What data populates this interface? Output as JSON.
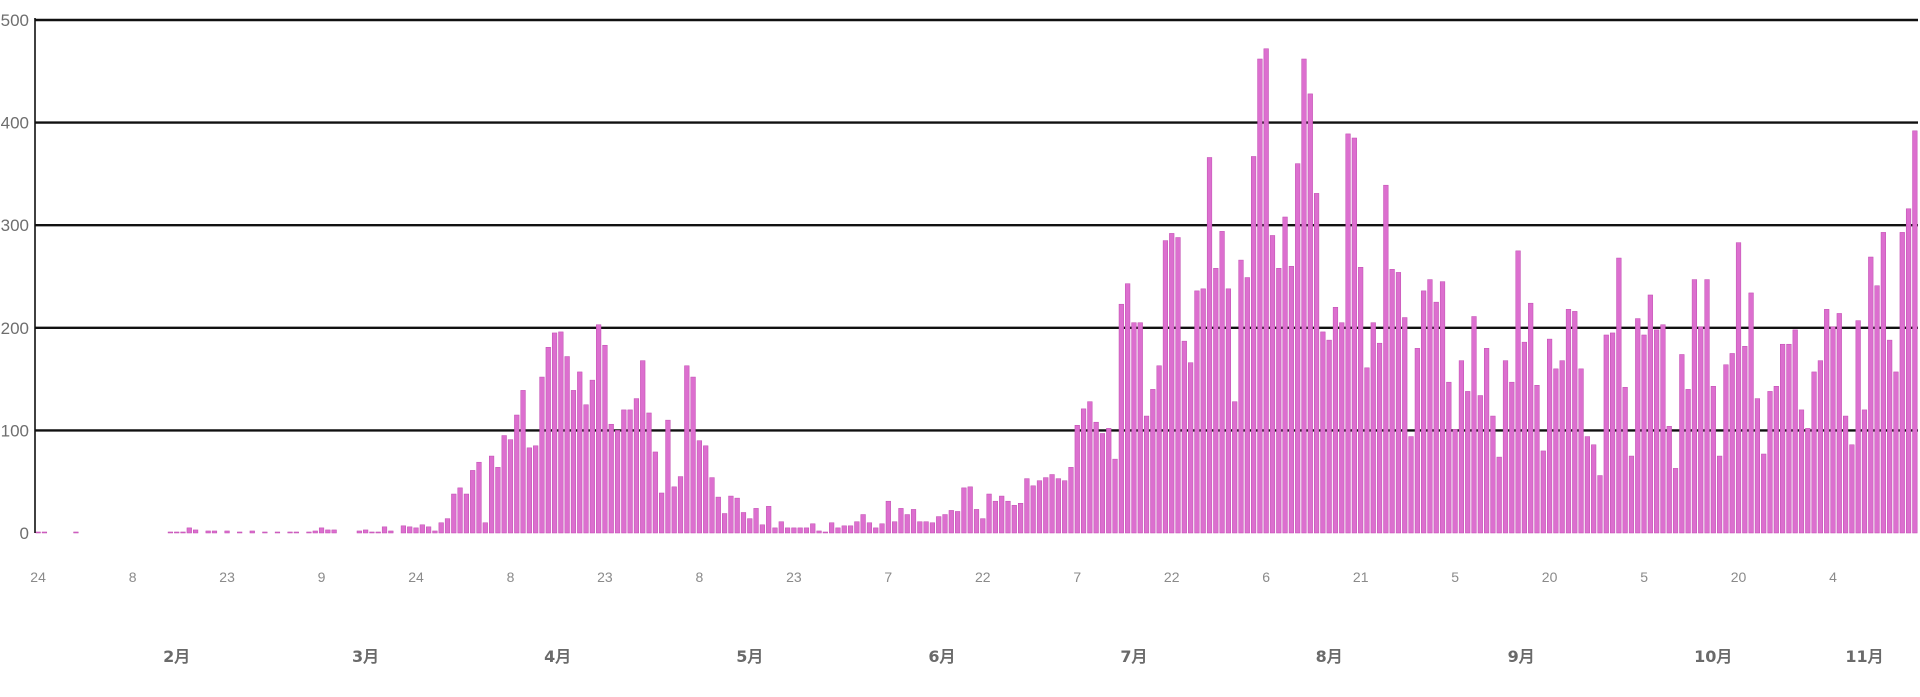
{
  "chart_data": {
    "type": "bar",
    "title": "",
    "xlabel": "",
    "ylabel": "",
    "ylim": [
      0,
      500
    ],
    "yticks": [
      "0",
      "100",
      "200",
      "300",
      "400",
      "500"
    ],
    "grid": true,
    "start_date": "01-24",
    "day_ticks": [
      "24",
      "8",
      "23",
      "9",
      "24",
      "8",
      "23",
      "8",
      "23",
      "7",
      "22",
      "7",
      "22",
      "6",
      "21",
      "5",
      "20",
      "5",
      "20",
      "4"
    ],
    "months": [
      "2月",
      "3月",
      "4月",
      "5月",
      "6月",
      "7月",
      "8月",
      "9月",
      "10月",
      "11月"
    ],
    "bar_color": "#dc6fcf",
    "values": [
      1,
      1,
      0,
      0,
      0,
      0,
      1,
      0,
      0,
      0,
      0,
      0,
      0,
      0,
      0,
      0,
      0,
      0,
      0,
      0,
      0,
      1,
      1,
      1,
      5,
      3,
      0,
      2,
      2,
      0,
      2,
      0,
      1,
      0,
      2,
      0,
      1,
      0,
      1,
      0,
      1,
      1,
      0,
      1,
      2,
      5,
      3,
      3,
      0,
      0,
      0,
      2,
      3,
      1,
      1,
      6,
      2,
      0,
      7,
      6,
      5,
      8,
      6,
      2,
      10,
      14,
      38,
      44,
      38,
      61,
      69,
      10,
      75,
      64,
      95,
      91,
      115,
      139,
      83,
      85,
      152,
      181,
      195,
      196,
      172,
      139,
      157,
      125,
      149,
      203,
      183,
      106,
      100,
      120,
      120,
      131,
      168,
      117,
      79,
      39,
      110,
      45,
      55,
      163,
      152,
      90,
      85,
      54,
      35,
      19,
      36,
      34,
      20,
      14,
      24,
      8,
      26,
      5,
      11,
      5,
      5,
      5,
      5,
      9,
      2,
      1,
      10,
      5,
      7,
      7,
      11,
      18,
      10,
      5,
      9,
      31,
      11,
      24,
      18,
      23,
      11,
      11,
      10,
      16,
      18,
      22,
      21,
      44,
      45,
      23,
      14,
      38,
      31,
      36,
      31,
      27,
      29,
      53,
      46,
      51,
      54,
      57,
      53,
      51,
      64,
      105,
      121,
      128,
      108,
      97,
      102,
      72,
      223,
      243,
      205,
      205,
      114,
      140,
      163,
      285,
      292,
      288,
      187,
      166,
      236,
      238,
      366,
      258,
      294,
      238,
      128,
      266,
      249,
      367,
      462,
      472,
      290,
      258,
      308,
      260,
      360,
      462,
      428,
      331,
      196,
      188,
      220,
      205,
      389,
      385,
      259,
      161,
      205,
      185,
      339,
      257,
      254,
      210,
      94,
      180,
      236,
      247,
      225,
      245,
      147,
      101,
      168,
      138,
      211,
      134,
      180,
      114,
      74,
      168,
      147,
      275,
      186,
      224,
      144,
      80,
      189,
      160,
      168,
      218,
      216,
      160,
      94,
      86,
      56,
      193,
      195,
      268,
      142,
      75,
      209,
      193,
      232,
      198,
      203,
      104,
      63,
      174,
      140,
      247,
      201,
      247,
      143,
      75,
      164,
      175,
      283,
      182,
      234,
      131,
      77,
      138,
      143,
      184,
      184,
      198,
      120,
      102,
      157,
      168,
      218,
      201,
      214,
      114,
      86,
      207,
      120,
      269,
      241,
      293,
      188,
      157,
      293,
      316,
      392
    ]
  }
}
